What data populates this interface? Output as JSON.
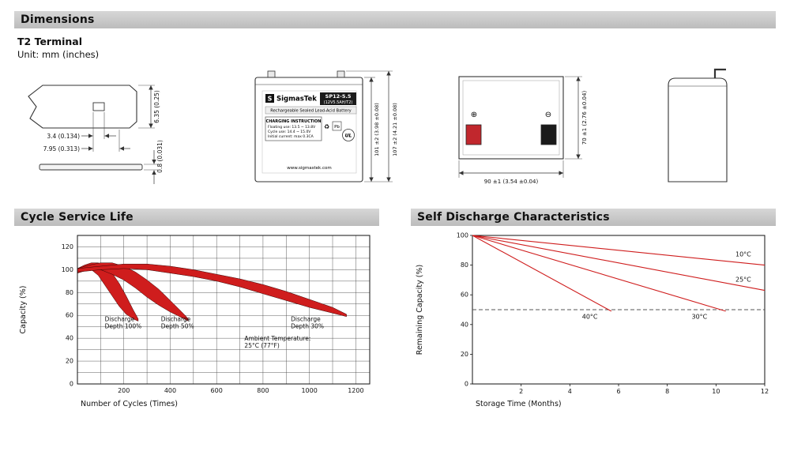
{
  "page": {
    "dimensions_title": "Dimensions",
    "terminal_type": "T2 Terminal",
    "unit_note": "Unit: mm (inches)",
    "cycle_title": "Cycle Service Life",
    "self_discharge_title": "Self Discharge Characteristics"
  },
  "terminal_drawing": {
    "dim_hole": "3.4 (0.134)",
    "dim_tab_width": "7.95 (0.313)",
    "dim_tab_height": "6.35 (0.25)",
    "dim_thickness": "0.8 (0.031)"
  },
  "battery_label": {
    "logo_letter": "S",
    "brand": "SigmasTek",
    "model": "SP12-5.5",
    "rating": "(12V5.5AH/T2)",
    "type_line": "Rechargeable Sealed Lead-Acid Battery",
    "charging_title": "CHARGING INSTRUCTION",
    "charge_line1": "Floating use: 13.5 ~ 13.8V",
    "charge_line2": "Cycle use: 14.4 ~ 15.0V",
    "charge_line3": "Initial current: max 0.3CA",
    "recycle_symbol": "♻",
    "icon_pb": "Pb",
    "icon_ul": "UL",
    "website": "www.sigmastek.com",
    "dim_height_body": "101 ±2 (3.98 ±0.08)",
    "dim_height_total": "107 ±2 (4.21 ±0.08)"
  },
  "rear_view": {
    "positive_symbol": "⊕",
    "negative_symbol": "⊖",
    "dim_width": "90 ±1 (3.54 ±0.04)",
    "dim_height": "70 ±1 (2.76 ±0.04)"
  },
  "chart_data": [
    {
      "type": "area",
      "title": "Cycle Service Life",
      "xlabel": "Number of Cycles (Times)",
      "ylabel": "Capacity (%)",
      "xlim": [
        0,
        1260
      ],
      "ylim": [
        0,
        130
      ],
      "xticks": [
        200,
        400,
        600,
        800,
        1000,
        1200
      ],
      "yticks": [
        0,
        20,
        40,
        60,
        80,
        100,
        120
      ],
      "xgrid": 100,
      "ygrid": 10,
      "grid": true,
      "legend": "none",
      "band_color": "#cf1d1d",
      "series": [
        {
          "name": "Discharge Depth 100%",
          "upper": [
            [
              0,
              101
            ],
            [
              30,
              104
            ],
            [
              60,
              106
            ],
            [
              90,
              106
            ],
            [
              120,
              103
            ],
            [
              150,
              97
            ],
            [
              180,
              88
            ],
            [
              210,
              77
            ],
            [
              240,
              65
            ],
            [
              262,
              57
            ]
          ],
          "lower": [
            [
              0,
              97
            ],
            [
              30,
              100
            ],
            [
              60,
              100
            ],
            [
              90,
              95
            ],
            [
              120,
              86
            ],
            [
              150,
              77
            ],
            [
              180,
              68
            ],
            [
              210,
              61
            ],
            [
              240,
              57
            ],
            [
              262,
              55
            ]
          ]
        },
        {
          "name": "Discharge Depth 50%",
          "upper": [
            [
              0,
              101
            ],
            [
              50,
              104
            ],
            [
              100,
              106
            ],
            [
              150,
              106
            ],
            [
              200,
              103
            ],
            [
              250,
              98
            ],
            [
              300,
              91
            ],
            [
              350,
              83
            ],
            [
              400,
              73
            ],
            [
              450,
              63
            ],
            [
              478,
              57
            ]
          ],
          "lower": [
            [
              0,
              97
            ],
            [
              50,
              100
            ],
            [
              100,
              100
            ],
            [
              150,
              96
            ],
            [
              200,
              91
            ],
            [
              250,
              84
            ],
            [
              300,
              76
            ],
            [
              350,
              69
            ],
            [
              400,
              63
            ],
            [
              450,
              58
            ],
            [
              478,
              55
            ]
          ]
        },
        {
          "name": "Discharge Depth 30%",
          "upper": [
            [
              0,
              101
            ],
            [
              100,
              103
            ],
            [
              200,
              105
            ],
            [
              300,
              105
            ],
            [
              400,
              103
            ],
            [
              500,
              100
            ],
            [
              600,
              96
            ],
            [
              700,
              92
            ],
            [
              800,
              87
            ],
            [
              900,
              81
            ],
            [
              1000,
              74
            ],
            [
              1100,
              67
            ],
            [
              1160,
              61
            ]
          ],
          "lower": [
            [
              0,
              98
            ],
            [
              100,
              100
            ],
            [
              200,
              101
            ],
            [
              300,
              100
            ],
            [
              400,
              97
            ],
            [
              500,
              94
            ],
            [
              600,
              90
            ],
            [
              700,
              85
            ],
            [
              800,
              79
            ],
            [
              900,
              73
            ],
            [
              1000,
              67
            ],
            [
              1100,
              62
            ],
            [
              1160,
              59
            ]
          ]
        }
      ],
      "annotations": [
        {
          "x": 118,
          "y": 55,
          "lines": [
            "Discharge",
            "Depth 100%"
          ]
        },
        {
          "x": 360,
          "y": 55,
          "lines": [
            "Discharge",
            "Depth 50%"
          ]
        },
        {
          "x": 920,
          "y": 55,
          "lines": [
            "Discharge",
            "Depth 30%"
          ]
        },
        {
          "x": 720,
          "y": 38,
          "lines": [
            "Ambient Temperature:",
            "25°C (77°F)"
          ]
        }
      ]
    },
    {
      "type": "line",
      "title": "Self Discharge Characteristics",
      "xlabel": "Storage Time (Months)",
      "ylabel": "Remaining Capacity (%)",
      "xlim": [
        0,
        12
      ],
      "ylim": [
        0,
        100
      ],
      "xticks": [
        2,
        4,
        6,
        8,
        10,
        12
      ],
      "yticks": [
        0,
        20,
        40,
        60,
        80,
        100
      ],
      "grid": false,
      "line_color": "#cf1d1d",
      "ref_line_y": 50,
      "series": [
        {
          "name": "10°C",
          "points": [
            [
              0,
              100
            ],
            [
              12,
              80
            ]
          ],
          "label_x": 10.8,
          "label_y": 86
        },
        {
          "name": "25°C",
          "points": [
            [
              0,
              100
            ],
            [
              12,
              63
            ]
          ],
          "label_x": 10.8,
          "label_y": 69
        },
        {
          "name": "30°C",
          "points": [
            [
              0,
              100
            ],
            [
              10.4,
              49
            ]
          ],
          "label_x": 9.0,
          "label_y": 44
        },
        {
          "name": "40°C",
          "points": [
            [
              0,
              100
            ],
            [
              5.7,
              49
            ]
          ],
          "label_x": 4.5,
          "label_y": 44
        }
      ]
    }
  ]
}
